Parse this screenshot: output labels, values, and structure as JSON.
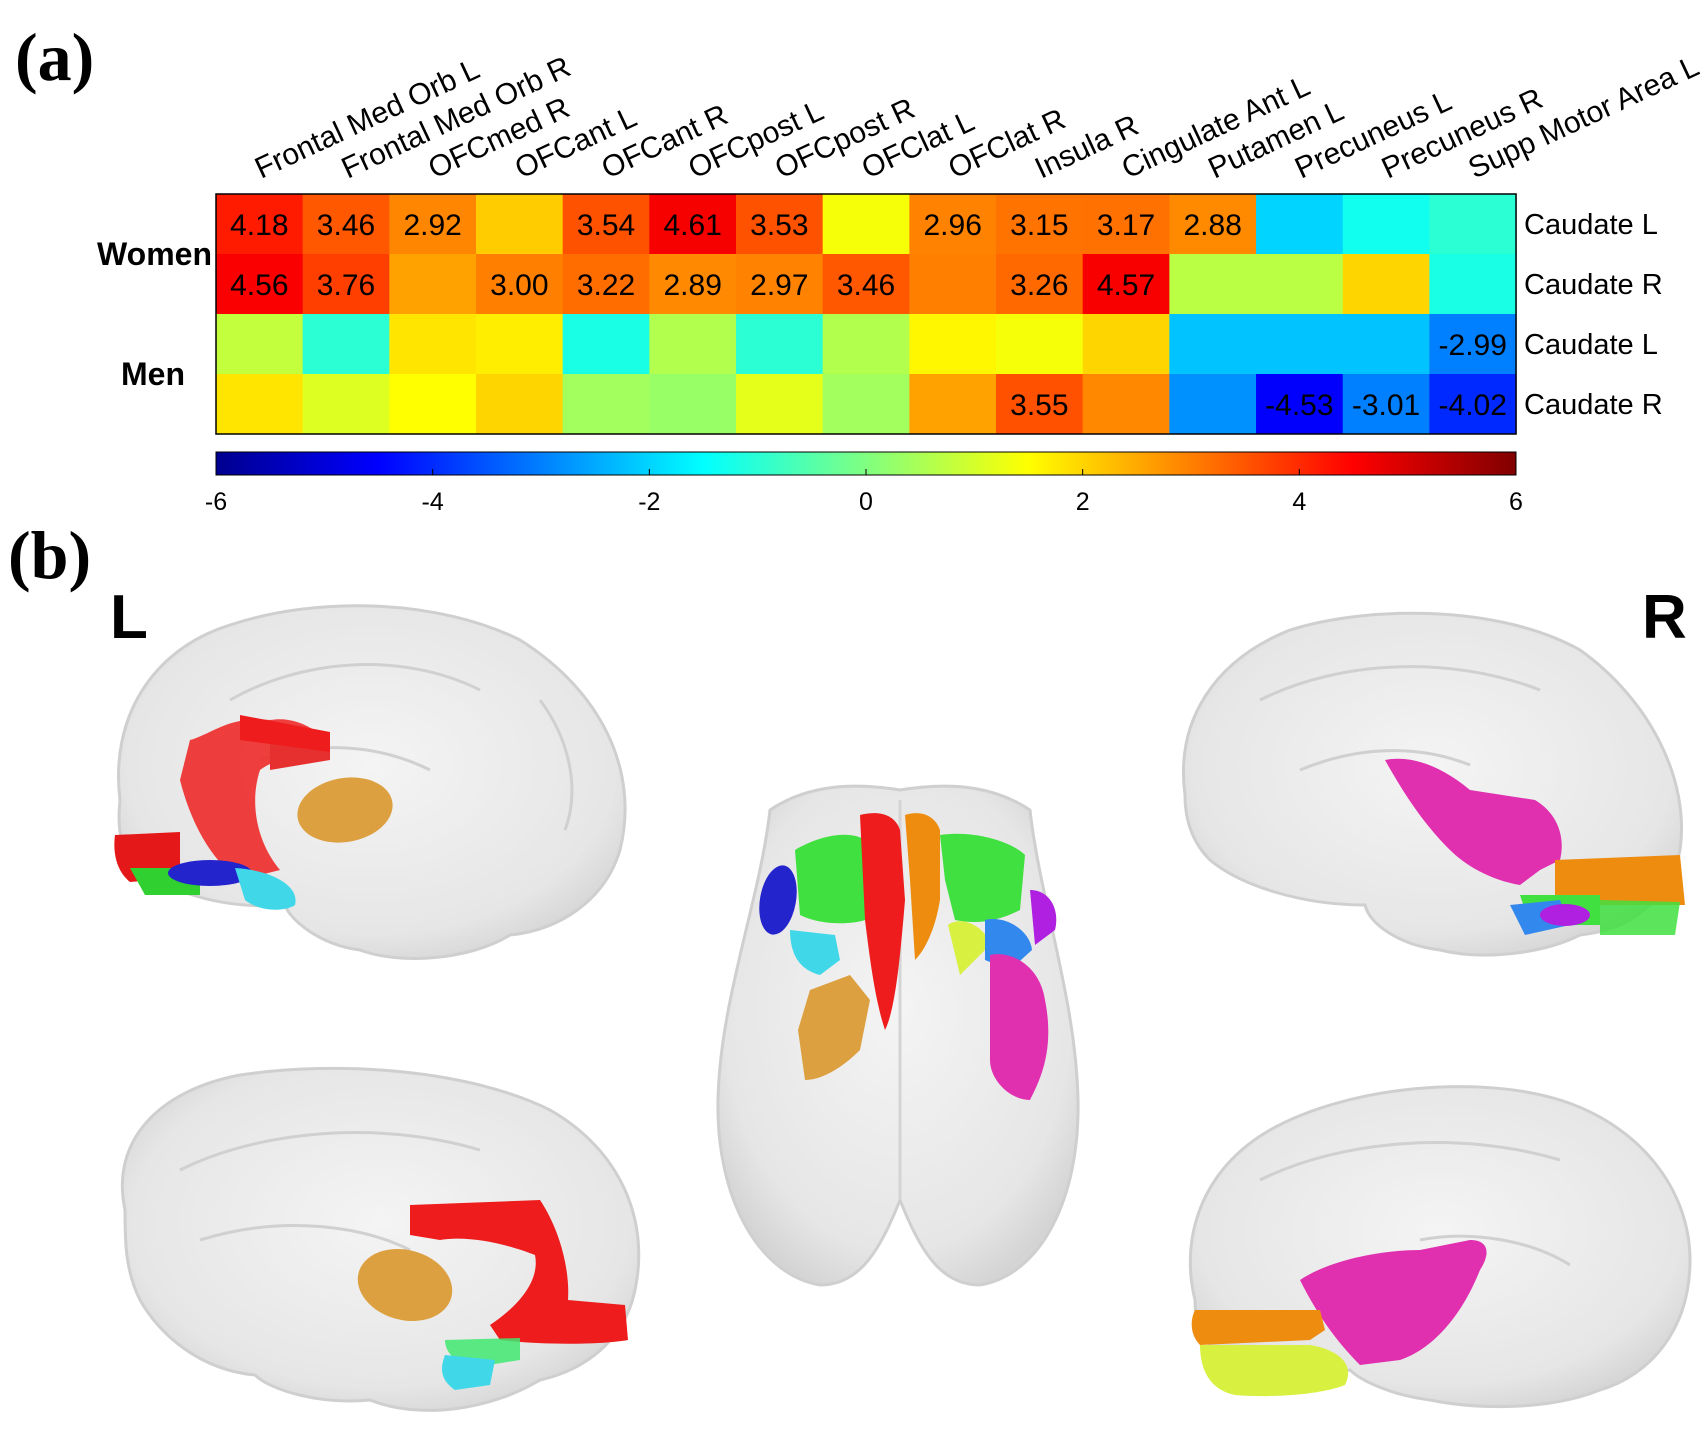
{
  "panel_a": {
    "label": "(a)"
  },
  "panel_b": {
    "label": "(b)",
    "left_label": "L",
    "right_label": "R"
  },
  "chart_data": {
    "type": "heatmap",
    "title": "",
    "columns": [
      "Frontal Med Orb L",
      "Frontal Med Orb R",
      "OFCmed R",
      "OFCant L",
      "OFCant R",
      "OFCpost L",
      "OFCpost R",
      "OFClat L",
      "OFClat R",
      "Insula R",
      "Cingulate Ant L",
      "Putamen L",
      "Precuneus L",
      "Precuneus R",
      "Supp Motor Area L"
    ],
    "rows": [
      {
        "group": "Women",
        "region": "Caudate L",
        "values": [
          4.18,
          3.46,
          2.92,
          2.1,
          3.54,
          4.61,
          3.53,
          1.4,
          2.96,
          3.15,
          3.17,
          2.88,
          -2.0,
          -1.3,
          -1.0
        ],
        "labels": [
          "4.18",
          "3.46",
          "2.92",
          "",
          "3.54",
          "4.61",
          "3.53",
          "",
          "2.96",
          "3.15",
          "3.17",
          "2.88",
          "",
          "",
          ""
        ]
      },
      {
        "group": "Women",
        "region": "Caudate R",
        "values": [
          4.56,
          3.76,
          2.6,
          3.0,
          3.22,
          2.89,
          2.97,
          3.46,
          3.0,
          3.26,
          4.57,
          0.7,
          0.7,
          2.0,
          -1.2
        ],
        "labels": [
          "4.56",
          "3.76",
          "",
          "3.00",
          "3.22",
          "2.89",
          "2.97",
          "3.46",
          "",
          "3.26",
          "4.57",
          "",
          "",
          "",
          ""
        ]
      },
      {
        "group": "Men",
        "region": "Caudate L",
        "values": [
          0.8,
          -1.0,
          1.8,
          1.7,
          -1.2,
          0.6,
          -1.0,
          0.6,
          1.6,
          1.4,
          2.0,
          -2.2,
          -2.2,
          -2.2,
          -2.99
        ],
        "labels": [
          "",
          "",
          "",
          "",
          "",
          "",
          "",
          "",
          "",
          "",
          "",
          "",
          "",
          "",
          "-2.99"
        ]
      },
      {
        "group": "Men",
        "region": "Caudate R",
        "values": [
          1.8,
          1.1,
          1.5,
          2.0,
          0.4,
          0.3,
          1.2,
          0.4,
          2.6,
          3.55,
          2.9,
          -2.8,
          -4.53,
          -3.01,
          -4.02
        ],
        "labels": [
          "",
          "",
          "",
          "",
          "",
          "",
          "",
          "",
          "",
          "3.55",
          "",
          "",
          "-4.53",
          "-3.01",
          "-4.02"
        ]
      }
    ],
    "groups": [
      "Women",
      "Men"
    ],
    "colorbar": {
      "min": -6,
      "max": 6,
      "ticks": [
        "-6",
        "-4",
        "-2",
        "0",
        "2",
        "4",
        "6"
      ],
      "colormap": "jet"
    }
  },
  "brain_colors": {
    "red": "#ee1c1c",
    "orange": "#e0a040",
    "blue": "#2222cc",
    "cyan": "#40d8e8",
    "green": "#40e040",
    "magenta": "#e030b0",
    "purple": "#b020e0",
    "yellow": "#d8f040",
    "deep_orange": "#ee8c10",
    "light_blue": "#3388ee"
  }
}
